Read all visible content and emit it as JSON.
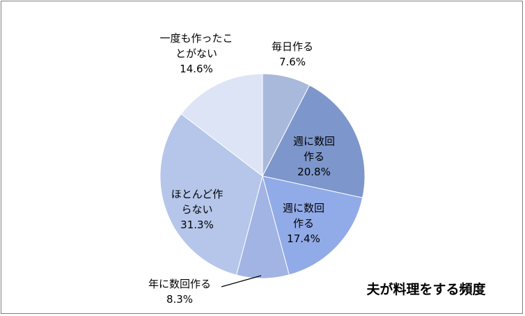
{
  "chart_data": {
    "type": "pie",
    "title": "夫が料理をする頻度",
    "start_angle_deg": 0,
    "direction": "clockwise",
    "slices": [
      {
        "label_lines": [
          "毎日作る"
        ],
        "percent_label": "7.6%",
        "value": 7.6,
        "color": "#a9b9dc"
      },
      {
        "label_lines": [
          "週に数回",
          "作る"
        ],
        "percent_label": "20.8%",
        "value": 20.8,
        "color": "#7d96cb"
      },
      {
        "label_lines": [
          "週に数回",
          "作る"
        ],
        "percent_label": "17.4%",
        "value": 17.4,
        "color": "#91abe8"
      },
      {
        "label_lines": [
          "年に数回作る"
        ],
        "percent_label": "8.3%",
        "value": 8.3,
        "color": "#a1b4e3"
      },
      {
        "label_lines": [
          "ほとんど作",
          "らない"
        ],
        "percent_label": "31.3%",
        "value": 31.3,
        "color": "#b6c6ea"
      },
      {
        "label_lines": [
          "一度も作ったこ",
          "とがない"
        ],
        "percent_label": "14.6%",
        "value": 14.6,
        "color": "#dde4f5"
      }
    ]
  }
}
